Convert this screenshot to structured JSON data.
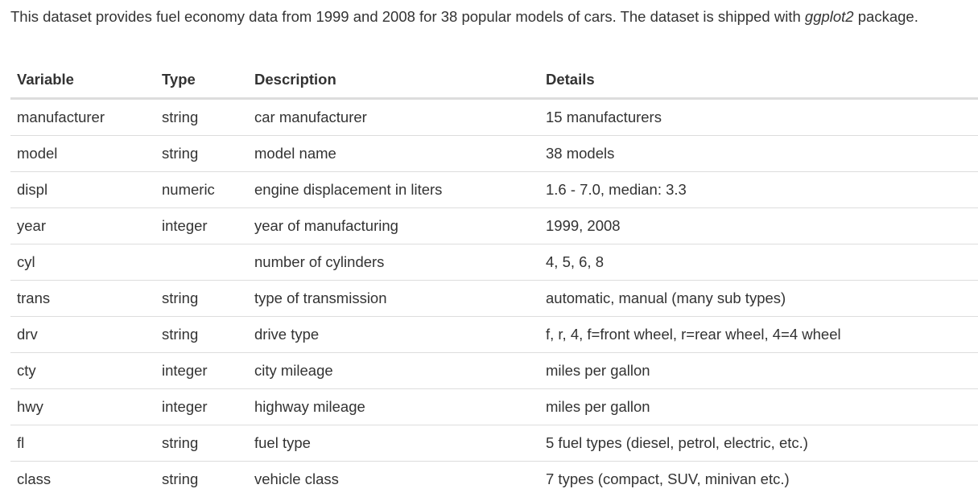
{
  "intro": {
    "text_before": "This dataset provides fuel economy data from 1999 and 2008 for 38 popular models of cars. The dataset is shipped with ",
    "package_name": "ggplot2",
    "text_after": " package."
  },
  "table": {
    "headers": [
      "Variable",
      "Type",
      "Description",
      "Details"
    ],
    "rows": [
      [
        "manufacturer",
        "string",
        "car manufacturer",
        "15 manufacturers"
      ],
      [
        "model",
        "string",
        "model name",
        "38 models"
      ],
      [
        "displ",
        "numeric",
        "engine displacement in liters",
        "1.6 - 7.0, median: 3.3"
      ],
      [
        "year",
        "integer",
        "year of manufacturing",
        "1999, 2008"
      ],
      [
        "cyl",
        "",
        "number of cylinders",
        "4, 5, 6, 8"
      ],
      [
        "trans",
        "string",
        "type of transmission",
        "automatic, manual (many sub types)"
      ],
      [
        "drv",
        "string",
        "drive type",
        "f, r, 4, f=front wheel, r=rear wheel, 4=4 wheel"
      ],
      [
        "cty",
        "integer",
        "city mileage",
        "miles per gallon"
      ],
      [
        "hwy",
        "integer",
        "highway mileage",
        "miles per gallon"
      ],
      [
        "fl",
        "string",
        "fuel type",
        "5 fuel types (diesel, petrol, electric, etc.)"
      ],
      [
        "class",
        "string",
        "vehicle class",
        "7 types (compact, SUV, minivan etc.)"
      ]
    ]
  }
}
